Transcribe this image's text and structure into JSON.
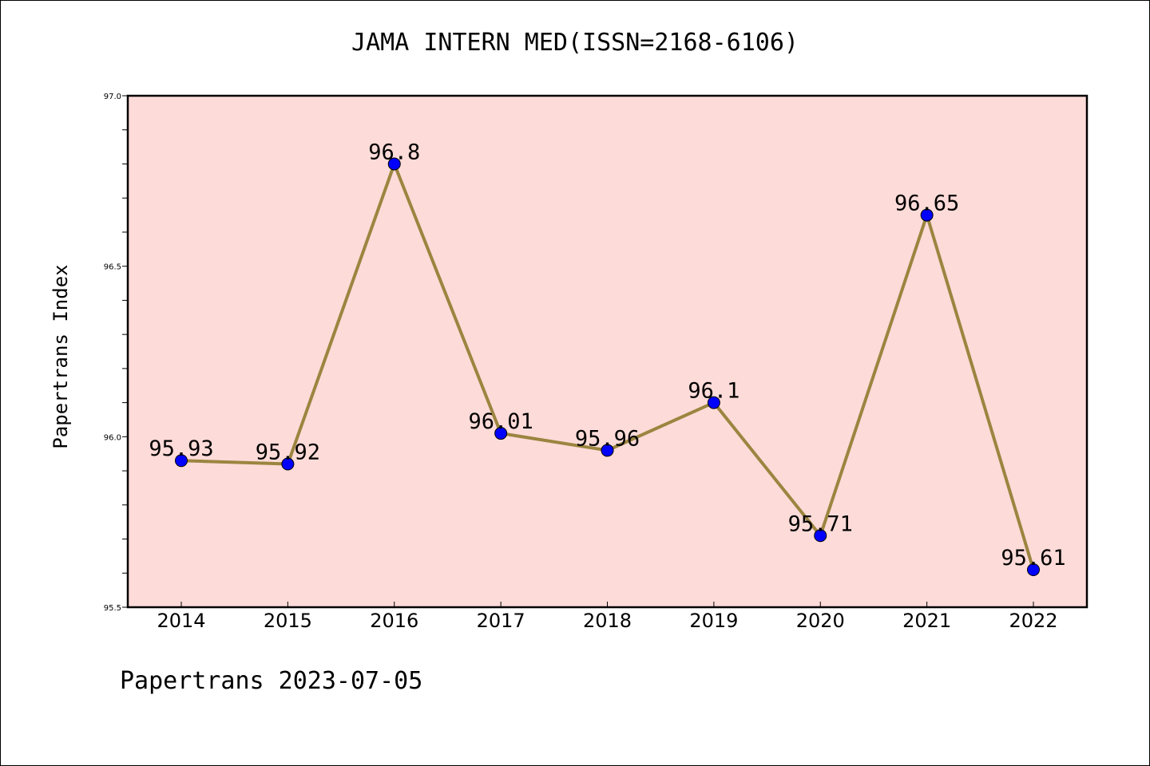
{
  "title": "JAMA INTERN MED(ISSN=2168-6106)",
  "footer": "Papertrans 2023-07-05",
  "chart_data": {
    "type": "line",
    "title": "JAMA INTERN MED(ISSN=2168-6106)",
    "xlabel": "",
    "ylabel": "Papertrans Index",
    "categories": [
      "2014",
      "2015",
      "2016",
      "2017",
      "2018",
      "2019",
      "2020",
      "2021",
      "2022"
    ],
    "series": [
      {
        "values": [
          95.93,
          95.92,
          96.8,
          96.01,
          95.96,
          96.1,
          95.71,
          96.65,
          95.61
        ],
        "labels": [
          "95.93",
          "95.92",
          "96.8",
          "96.01",
          "95.96",
          "96.1",
          "95.71",
          "96.65",
          "95.61"
        ]
      }
    ],
    "ylim": [
      95.5,
      97.0
    ],
    "yticks": [
      "95.5",
      "96.0",
      "96.5",
      "97.0"
    ],
    "grid": false,
    "colors": {
      "plot_background": "#fddbd8",
      "line": "#9b8540",
      "marker": "#0000ff"
    }
  }
}
